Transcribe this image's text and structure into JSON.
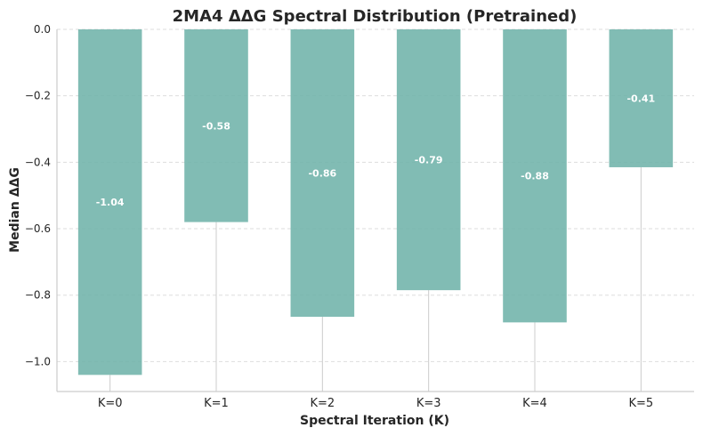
{
  "chart_data": {
    "type": "bar",
    "title": "2MA4 ΔΔG Spectral Distribution (Pretrained)",
    "xlabel": "Spectral Iteration (K)",
    "ylabel": "Median ΔΔG",
    "categories": [
      "K=0",
      "K=1",
      "K=2",
      "K=3",
      "K=4",
      "K=5"
    ],
    "values": [
      -1.04,
      -0.58,
      -0.865,
      -0.785,
      -0.882,
      -0.415
    ],
    "value_labels": [
      "-1.04",
      "-0.58",
      "-0.86",
      "-0.79",
      "-0.88",
      "-0.41"
    ],
    "ylim": [
      -1.09,
      0.0
    ],
    "yticks": [
      0.0,
      -0.2,
      -0.4,
      -0.6,
      -0.8,
      -1.0
    ],
    "ytick_labels": [
      "0.0",
      "−0.2",
      "−0.4",
      "−0.6",
      "−0.8",
      "−1.0"
    ],
    "grid": "y-dashed",
    "colors": {
      "bar": "#6fb3aa",
      "grid": "#dddddd",
      "axis": "#cccccc",
      "whisker": "#cccccc"
    }
  }
}
